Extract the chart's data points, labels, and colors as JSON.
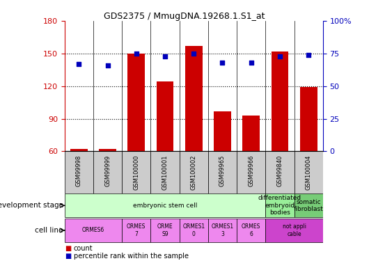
{
  "title": "GDS2375 / MmugDNA.19268.1.S1_at",
  "samples": [
    "GSM99998",
    "GSM99999",
    "GSM100000",
    "GSM100001",
    "GSM100002",
    "GSM99965",
    "GSM99966",
    "GSM99840",
    "GSM100004"
  ],
  "counts": [
    62,
    62,
    150,
    124,
    157,
    97,
    93,
    152,
    119
  ],
  "percentile": [
    67,
    66,
    75,
    73,
    75,
    68,
    68,
    73,
    74
  ],
  "ylim_left": [
    60,
    180
  ],
  "ylim_right": [
    0,
    100
  ],
  "yticks_left": [
    60,
    90,
    120,
    150,
    180
  ],
  "yticks_right": [
    0,
    25,
    50,
    75,
    100
  ],
  "ytick_labels_right": [
    "0",
    "25",
    "50",
    "75",
    "100%"
  ],
  "hlines": [
    90,
    120,
    150
  ],
  "bar_color": "#cc0000",
  "dot_color": "#0000bb",
  "bar_width": 0.6,
  "dev_stage_groups": [
    {
      "label": "embryonic stem cell",
      "start": 0,
      "end": 7,
      "color": "#ccffcc"
    },
    {
      "label": "differentiated\nembryoid\nbodies",
      "start": 7,
      "end": 8,
      "color": "#99ee99"
    },
    {
      "label": "somatic\nfibroblast",
      "start": 8,
      "end": 9,
      "color": "#77cc77"
    }
  ],
  "cell_line_groups": [
    {
      "label": "ORMES6",
      "start": 0,
      "end": 2,
      "color": "#ee88ee"
    },
    {
      "label": "ORMES\n7",
      "start": 2,
      "end": 3,
      "color": "#ee88ee"
    },
    {
      "label": "ORME\nS9",
      "start": 3,
      "end": 4,
      "color": "#ee88ee"
    },
    {
      "label": "ORMES1\n0",
      "start": 4,
      "end": 5,
      "color": "#ee88ee"
    },
    {
      "label": "ORMES1\n3",
      "start": 5,
      "end": 6,
      "color": "#ee88ee"
    },
    {
      "label": "ORMES\n6",
      "start": 6,
      "end": 7,
      "color": "#ee88ee"
    },
    {
      "label": "not appli\ncable",
      "start": 7,
      "end": 9,
      "color": "#cc44cc"
    }
  ],
  "left_label_dev": "development stage",
  "left_label_cell": "cell line",
  "legend_count_label": "count",
  "legend_pct_label": "percentile rank within the sample",
  "background_color": "#ffffff",
  "tick_label_color_left": "#cc0000",
  "tick_label_color_right": "#0000bb",
  "sample_label_bg": "#cccccc"
}
